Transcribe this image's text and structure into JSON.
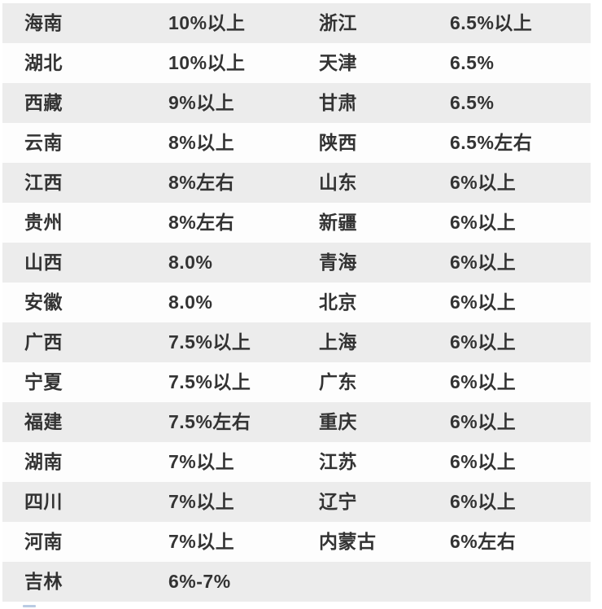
{
  "colors": {
    "page_bg": "#ffffff",
    "stripe_bg": "#ececec",
    "row_bg": "#fdfdfd",
    "text_color": "#333333",
    "blue_mark": "#a9bedc"
  },
  "chart_data": {
    "type": "table",
    "title": "",
    "header_visible": false,
    "columns": [
      "province",
      "growth_target",
      "province",
      "growth_target"
    ],
    "layout": {
      "rows_visible": 15,
      "stripe_pattern": "odd-rows-gray",
      "column_pairs": 2
    },
    "rows": [
      [
        "海南",
        "10%以上",
        "浙江",
        "6.5%以上"
      ],
      [
        "湖北",
        "10%以上",
        "天津",
        "6.5%"
      ],
      [
        "西藏",
        "9%以上",
        "甘肃",
        "6.5%"
      ],
      [
        "云南",
        "8%以上",
        "陕西",
        "6.5%左右"
      ],
      [
        "江西",
        "8%左右",
        "山东",
        "6%以上"
      ],
      [
        "贵州",
        "8%左右",
        "新疆",
        "6%以上"
      ],
      [
        "山西",
        "8.0%",
        "青海",
        "6%以上"
      ],
      [
        "安徽",
        "8.0%",
        "北京",
        "6%以上"
      ],
      [
        "广西",
        "7.5%以上",
        "上海",
        "6%以上"
      ],
      [
        "宁夏",
        "7.5%以上",
        "广东",
        "6%以上"
      ],
      [
        "福建",
        "7.5%左右",
        "重庆",
        "6%以上"
      ],
      [
        "湖南",
        "7%以上",
        "江苏",
        "6%以上"
      ],
      [
        "四川",
        "7%以上",
        "辽宁",
        "6%以上"
      ],
      [
        "河南",
        "7%以上",
        "内蒙古",
        "6%左右"
      ],
      [
        "吉林",
        "6%-7%",
        "",
        ""
      ]
    ]
  }
}
